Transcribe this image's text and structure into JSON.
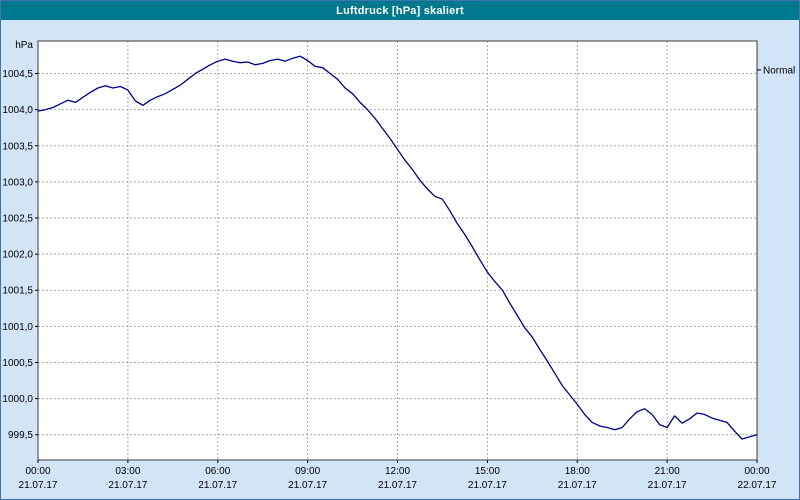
{
  "window": {
    "title": "Luftdruck [hPa] skaliert"
  },
  "chart_data": {
    "type": "line",
    "title": "Luftdruck [hPa] skaliert",
    "y_unit_label": "hPa",
    "right_label": "Normal",
    "normal_marker_value": 1004.55,
    "grid": true,
    "grid_style": "dashed",
    "legend_position": "none",
    "series_name": "Luftdruck",
    "series_color": "#000096",
    "xlim": [
      0,
      24
    ],
    "ylim": [
      999.15,
      1004.95
    ],
    "y_ticks": [
      {
        "label": "1004,5",
        "value": 1004.5
      },
      {
        "label": "1004,0",
        "value": 1004.0
      },
      {
        "label": "1003,5",
        "value": 1003.5
      },
      {
        "label": "1003,0",
        "value": 1003.0
      },
      {
        "label": "1002,5",
        "value": 1002.5
      },
      {
        "label": "1002,0",
        "value": 1002.0
      },
      {
        "label": "1001,5",
        "value": 1001.5
      },
      {
        "label": "1001,0",
        "value": 1001.0
      },
      {
        "label": "1000,5",
        "value": 1000.5
      },
      {
        "label": "1000,0",
        "value": 1000.0
      },
      {
        "label": "999,5",
        "value": 999.5
      }
    ],
    "x_ticks": [
      {
        "hour": 0,
        "time": "00:00",
        "date": "21.07.17"
      },
      {
        "hour": 3,
        "time": "03:00",
        "date": "21.07.17"
      },
      {
        "hour": 6,
        "time": "06:00",
        "date": "21.07.17"
      },
      {
        "hour": 9,
        "time": "09:00",
        "date": "21.07.17"
      },
      {
        "hour": 12,
        "time": "12:00",
        "date": "21.07.17"
      },
      {
        "hour": 15,
        "time": "15:00",
        "date": "21.07.17"
      },
      {
        "hour": 18,
        "time": "18:00",
        "date": "21.07.17"
      },
      {
        "hour": 21,
        "time": "21:00",
        "date": "21.07.17"
      },
      {
        "hour": 24,
        "time": "00:00",
        "date": "22.07.17"
      }
    ],
    "points": [
      [
        0,
        1003.98
      ],
      [
        0.25,
        1004.0
      ],
      [
        0.5,
        1004.03
      ],
      [
        0.75,
        1004.08
      ],
      [
        1,
        1004.13
      ],
      [
        1.25,
        1004.1
      ],
      [
        1.5,
        1004.17
      ],
      [
        1.75,
        1004.24
      ],
      [
        2,
        1004.3
      ],
      [
        2.25,
        1004.33
      ],
      [
        2.5,
        1004.3
      ],
      [
        2.75,
        1004.32
      ],
      [
        3,
        1004.27
      ],
      [
        3.25,
        1004.12
      ],
      [
        3.5,
        1004.06
      ],
      [
        3.75,
        1004.13
      ],
      [
        4,
        1004.18
      ],
      [
        4.25,
        1004.22
      ],
      [
        4.5,
        1004.28
      ],
      [
        4.75,
        1004.34
      ],
      [
        5,
        1004.42
      ],
      [
        5.25,
        1004.5
      ],
      [
        5.5,
        1004.56
      ],
      [
        5.75,
        1004.62
      ],
      [
        6,
        1004.67
      ],
      [
        6.25,
        1004.7
      ],
      [
        6.5,
        1004.67
      ],
      [
        6.75,
        1004.65
      ],
      [
        7,
        1004.66
      ],
      [
        7.25,
        1004.62
      ],
      [
        7.5,
        1004.64
      ],
      [
        7.75,
        1004.68
      ],
      [
        8,
        1004.7
      ],
      [
        8.25,
        1004.67
      ],
      [
        8.5,
        1004.71
      ],
      [
        8.75,
        1004.74
      ],
      [
        9,
        1004.68
      ],
      [
        9.25,
        1004.6
      ],
      [
        9.5,
        1004.58
      ],
      [
        9.75,
        1004.5
      ],
      [
        10,
        1004.42
      ],
      [
        10.25,
        1004.3
      ],
      [
        10.5,
        1004.22
      ],
      [
        10.75,
        1004.1
      ],
      [
        11,
        1004.0
      ],
      [
        11.25,
        1003.88
      ],
      [
        11.5,
        1003.74
      ],
      [
        11.75,
        1003.6
      ],
      [
        12,
        1003.45
      ],
      [
        12.25,
        1003.3
      ],
      [
        12.5,
        1003.17
      ],
      [
        12.75,
        1003.02
      ],
      [
        13,
        1002.9
      ],
      [
        13.25,
        1002.8
      ],
      [
        13.5,
        1002.76
      ],
      [
        13.75,
        1002.6
      ],
      [
        14,
        1002.42
      ],
      [
        14.25,
        1002.27
      ],
      [
        14.5,
        1002.1
      ],
      [
        14.75,
        1001.92
      ],
      [
        15,
        1001.75
      ],
      [
        15.25,
        1001.62
      ],
      [
        15.5,
        1001.5
      ],
      [
        15.75,
        1001.32
      ],
      [
        16,
        1001.15
      ],
      [
        16.25,
        1000.98
      ],
      [
        16.5,
        1000.85
      ],
      [
        16.75,
        1000.68
      ],
      [
        17,
        1000.52
      ],
      [
        17.25,
        1000.35
      ],
      [
        17.5,
        1000.18
      ],
      [
        17.75,
        1000.05
      ],
      [
        18,
        999.92
      ],
      [
        18.25,
        999.78
      ],
      [
        18.5,
        999.67
      ],
      [
        18.75,
        999.62
      ],
      [
        19,
        999.6
      ],
      [
        19.25,
        999.57
      ],
      [
        19.5,
        999.6
      ],
      [
        19.75,
        999.72
      ],
      [
        20,
        999.82
      ],
      [
        20.25,
        999.86
      ],
      [
        20.5,
        999.78
      ],
      [
        20.75,
        999.64
      ],
      [
        21,
        999.6
      ],
      [
        21.25,
        999.76
      ],
      [
        21.5,
        999.66
      ],
      [
        21.75,
        999.72
      ],
      [
        22,
        999.8
      ],
      [
        22.25,
        999.78
      ],
      [
        22.5,
        999.73
      ],
      [
        22.75,
        999.7
      ],
      [
        23,
        999.67
      ],
      [
        23.25,
        999.55
      ],
      [
        23.5,
        999.44
      ],
      [
        23.75,
        999.47
      ],
      [
        24,
        999.5
      ]
    ],
    "colors": {
      "window_background": "#d2e5f6",
      "titlebar_background": "#00798e",
      "titlebar_text": "#ffffff",
      "plot_background": "#ffffff",
      "plot_border": "#3c3c3c",
      "grid": "#aaaaaa",
      "line": "#000096"
    }
  }
}
